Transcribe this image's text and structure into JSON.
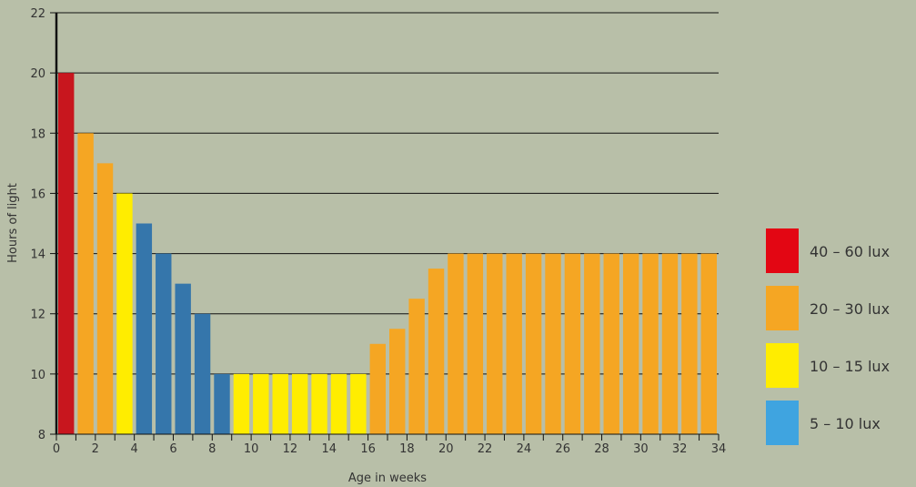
{
  "chart_data": {
    "type": "bar",
    "xlabel": "Age in weeks",
    "ylabel": "Hours of light",
    "ylim": [
      8,
      22
    ],
    "xlim": [
      0,
      34
    ],
    "yticks": [
      8,
      10,
      12,
      14,
      16,
      18,
      20,
      22
    ],
    "xticks": [
      0,
      2,
      4,
      6,
      8,
      10,
      12,
      14,
      16,
      18,
      20,
      22,
      24,
      26,
      28,
      30,
      32,
      34
    ],
    "grid": "horizontal",
    "legend_position": "right",
    "bars": [
      {
        "week": 0,
        "hours": 20,
        "group": "40-60"
      },
      {
        "week": 1,
        "hours": 18,
        "group": "20-30"
      },
      {
        "week": 2,
        "hours": 17,
        "group": "20-30"
      },
      {
        "week": 3,
        "hours": 16,
        "group": "10-15"
      },
      {
        "week": 4,
        "hours": 15,
        "group": "5-10"
      },
      {
        "week": 5,
        "hours": 14,
        "group": "5-10"
      },
      {
        "week": 6,
        "hours": 13,
        "group": "5-10"
      },
      {
        "week": 7,
        "hours": 12,
        "group": "5-10"
      },
      {
        "week": 8,
        "hours": 10,
        "group": "5-10"
      },
      {
        "week": 9,
        "hours": 10,
        "group": "10-15"
      },
      {
        "week": 10,
        "hours": 10,
        "group": "10-15"
      },
      {
        "week": 11,
        "hours": 10,
        "group": "10-15"
      },
      {
        "week": 12,
        "hours": 10,
        "group": "10-15"
      },
      {
        "week": 13,
        "hours": 10,
        "group": "10-15"
      },
      {
        "week": 14,
        "hours": 10,
        "group": "10-15"
      },
      {
        "week": 15,
        "hours": 10,
        "group": "10-15"
      },
      {
        "week": 16,
        "hours": 11,
        "group": "20-30"
      },
      {
        "week": 17,
        "hours": 11.5,
        "group": "20-30"
      },
      {
        "week": 18,
        "hours": 12.5,
        "group": "20-30"
      },
      {
        "week": 19,
        "hours": 13.5,
        "group": "20-30"
      },
      {
        "week": 20,
        "hours": 14,
        "group": "20-30"
      },
      {
        "week": 21,
        "hours": 14,
        "group": "20-30"
      },
      {
        "week": 22,
        "hours": 14,
        "group": "20-30"
      },
      {
        "week": 23,
        "hours": 14,
        "group": "20-30"
      },
      {
        "week": 24,
        "hours": 14,
        "group": "20-30"
      },
      {
        "week": 25,
        "hours": 14,
        "group": "20-30"
      },
      {
        "week": 26,
        "hours": 14,
        "group": "20-30"
      },
      {
        "week": 27,
        "hours": 14,
        "group": "20-30"
      },
      {
        "week": 28,
        "hours": 14,
        "group": "20-30"
      },
      {
        "week": 29,
        "hours": 14,
        "group": "20-30"
      },
      {
        "week": 30,
        "hours": 14,
        "group": "20-30"
      },
      {
        "week": 31,
        "hours": 14,
        "group": "20-30"
      },
      {
        "week": 32,
        "hours": 14,
        "group": "20-30"
      },
      {
        "week": 33,
        "hours": 14,
        "group": "20-30"
      }
    ],
    "legend": [
      {
        "key": "40-60",
        "label": "40 – 60 lux",
        "color": "#e30613",
        "bar_color": "#c8161e"
      },
      {
        "key": "20-30",
        "label": "20 – 30 lux",
        "color": "#f5a623",
        "bar_color": "#f5a623"
      },
      {
        "key": "10-15",
        "label": "10 – 15 lux",
        "color": "#ffed00",
        "bar_color": "#ffed00"
      },
      {
        "key": "5-10",
        "label": "5 – 10 lux",
        "color": "#3fa4e0",
        "bar_color": "#3576ab"
      }
    ]
  }
}
